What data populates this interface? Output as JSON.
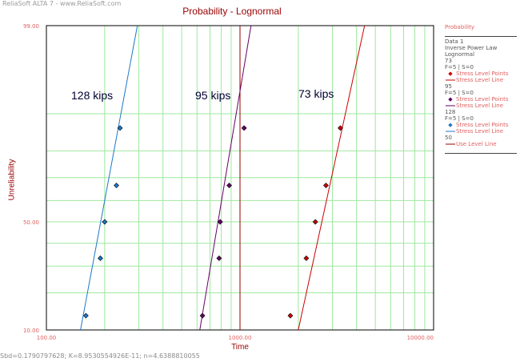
{
  "app": {
    "watermark": "ReliaSoft ALTA 7 - www.ReliaSoft.com"
  },
  "chart_data": {
    "type": "scatter",
    "title": "Probability - Lognormal",
    "xlabel": "Time",
    "ylabel": "Unreliability",
    "x_scale": "log",
    "y_scale": "lognormal-probability",
    "xlim": [
      100,
      10000
    ],
    "ylim": [
      10,
      99
    ],
    "x_ticks": [
      {
        "value": 100,
        "label": "100.00"
      },
      {
        "value": 1000,
        "label": "1000.00"
      },
      {
        "value": 10000,
        "label": "10000.00"
      }
    ],
    "y_ticks": [
      {
        "value": 10,
        "label": "10.00"
      },
      {
        "value": 50,
        "label": "50.00"
      },
      {
        "value": 99,
        "label": "99.00"
      }
    ],
    "grid": true,
    "legend_position": "right",
    "series": [
      {
        "name": "73",
        "annotation": "73 kips",
        "color": "#cc0000",
        "points": [
          [
            1820,
            13.3
          ],
          [
            2200,
            33.3
          ],
          [
            2450,
            50.0
          ],
          [
            2780,
            66.7
          ],
          [
            3300,
            86.7
          ]
        ],
        "line": [
          [
            2000,
            10
          ],
          [
            4400,
            99
          ]
        ]
      },
      {
        "name": "95",
        "annotation": "95 kips",
        "color": "#660066",
        "points": [
          [
            640,
            13.3
          ],
          [
            780,
            33.3
          ],
          [
            790,
            50.0
          ],
          [
            880,
            66.7
          ],
          [
            1050,
            86.7
          ]
        ],
        "line": [
          [
            620,
            10
          ],
          [
            1140,
            99
          ]
        ]
      },
      {
        "name": "128",
        "annotation": "128 kips",
        "color": "#1e78c8",
        "points": [
          [
            160,
            13.3
          ],
          [
            190,
            33.3
          ],
          [
            200,
            50.0
          ],
          [
            230,
            66.7
          ],
          [
            240,
            86.7
          ]
        ],
        "line": [
          [
            150,
            10
          ],
          [
            295,
            99
          ]
        ]
      }
    ],
    "use_level_line": {
      "name": "50",
      "color": "#990000",
      "x": 1000
    }
  },
  "legend": {
    "heading": "Probability",
    "data_name": "Data 1",
    "model": "Inverse Power Law",
    "distribution": "Lognormal",
    "entries": [
      {
        "stress": "73",
        "counts": "F=5 | S=0",
        "points_label": "Stress Level Points",
        "line_label": "Stress Level Line",
        "color": "#cc0000"
      },
      {
        "stress": "95",
        "counts": "F=5 | S=0",
        "points_label": "Stress Level Points",
        "line_label": "Stress Level Line",
        "color": "#660066"
      },
      {
        "stress": "128",
        "counts": "F=5 | S=0",
        "points_label": "Stress Level Points",
        "line_label": "Stress Level Line",
        "color": "#1e78c8"
      }
    ],
    "use_level": {
      "stress": "50",
      "label": "Use Level Line",
      "color": "#990000"
    }
  },
  "footer": "Sbd=0.1790797628; K=8.9530554926E-11; n=4.6388810055"
}
